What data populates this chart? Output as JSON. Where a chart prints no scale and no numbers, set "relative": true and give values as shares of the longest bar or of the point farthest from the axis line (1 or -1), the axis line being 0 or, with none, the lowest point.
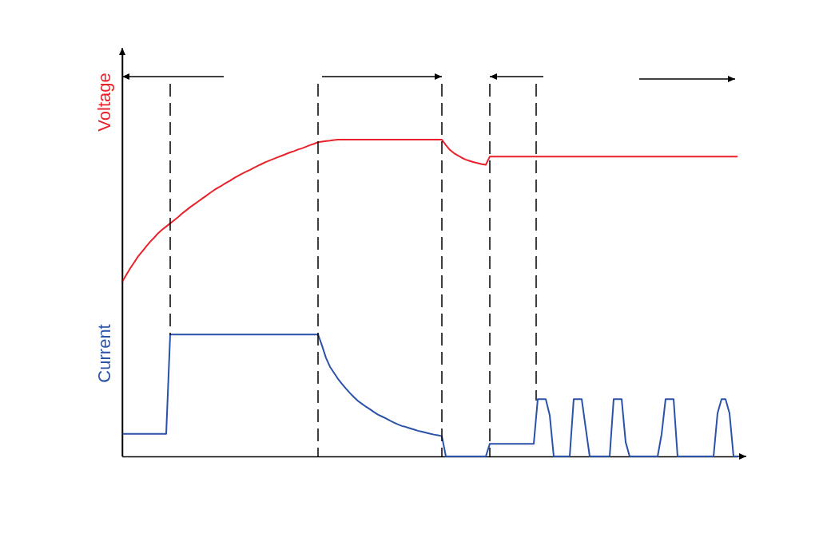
{
  "chart_data": {
    "type": "line",
    "relative": true,
    "line_style": "solid",
    "categories": [
      null,
      null,
      null,
      null,
      null,
      null,
      null,
      null,
      null,
      null,
      null,
      null,
      null,
      null,
      null,
      null,
      null,
      null,
      null,
      null,
      null,
      null,
      null,
      null,
      null,
      null,
      null,
      null,
      null,
      null,
      null,
      null,
      null,
      null,
      null,
      null,
      null,
      null,
      null,
      null,
      null,
      null,
      null,
      null,
      null,
      null,
      null,
      null,
      null,
      null,
      null,
      null,
      null,
      null,
      null,
      null,
      null,
      null,
      null,
      null,
      null,
      null,
      null,
      null,
      null,
      null,
      null,
      null,
      null,
      null,
      null,
      null,
      null,
      null,
      null,
      null,
      null,
      null,
      null,
      null,
      null,
      null,
      null,
      null,
      null,
      null,
      null,
      null,
      null,
      null,
      null,
      null,
      null,
      null,
      null,
      null,
      null,
      null,
      null,
      null,
      null,
      null,
      null,
      null,
      null,
      null,
      null,
      null,
      null,
      null,
      null,
      null,
      null,
      null,
      null,
      null,
      null,
      null,
      null,
      null,
      null,
      null,
      null,
      null,
      null,
      null,
      null,
      null,
      null,
      null,
      null,
      null,
      null,
      null,
      null,
      null,
      null,
      null,
      null,
      null,
      null,
      null,
      null,
      null,
      null,
      null,
      null,
      null,
      null,
      null,
      null,
      null,
      null,
      null,
      null
    ],
    "series": [
      {
        "name": "Voltage",
        "color": "#e8212a",
        "values": [
          0.552,
          0.573,
          0.594,
          0.613,
          0.632,
          0.647,
          0.663,
          0.678,
          0.691,
          0.705,
          0.716,
          0.726,
          0.736,
          0.746,
          0.756,
          0.767,
          0.777,
          0.787,
          0.796,
          0.805,
          0.814,
          0.823,
          0.832,
          0.841,
          0.849,
          0.856,
          0.864,
          0.871,
          0.879,
          0.886,
          0.893,
          0.899,
          0.905,
          0.912,
          0.918,
          0.924,
          0.93,
          0.935,
          0.94,
          0.945,
          0.95,
          0.955,
          0.96,
          0.964,
          0.969,
          0.973,
          0.978,
          0.983,
          0.987,
          0.992,
          0.994,
          0.996,
          0.997,
          0.999,
          1,
          1,
          1,
          1,
          1,
          1,
          1,
          1,
          1,
          1,
          1,
          1,
          1,
          1,
          1,
          1,
          1,
          1,
          1,
          1,
          1,
          1,
          1,
          1,
          1,
          1,
          1,
          0.983,
          0.968,
          0.958,
          0.95,
          0.943,
          0.937,
          0.933,
          0.929,
          0.926,
          0.923,
          0.921,
          0.947,
          0.947,
          0.947,
          0.947,
          0.947,
          0.947,
          0.947,
          0.947,
          0.947,
          0.947,
          0.947,
          0.947,
          0.947,
          0.947,
          0.947,
          0.947,
          0.947,
          0.947,
          0.947,
          0.947,
          0.947,
          0.947,
          0.947,
          0.947,
          0.947,
          0.947,
          0.947,
          0.947,
          0.947,
          0.947,
          0.947,
          0.947,
          0.947,
          0.947,
          0.947,
          0.947,
          0.947,
          0.947,
          0.947,
          0.947,
          0.947,
          0.947,
          0.947,
          0.947,
          0.947,
          0.947,
          0.947,
          0.947,
          0.947,
          0.947,
          0.947,
          0.947,
          0.947,
          0.947,
          0.947,
          0.947,
          0.947,
          0.947,
          0.947,
          0.947,
          0.947,
          0.947,
          0.947
        ]
      },
      {
        "name": "Current",
        "color": "#2a52a8",
        "values": [
          0.071,
          0.071,
          0.071,
          0.071,
          0.071,
          0.071,
          0.071,
          0.071,
          0.071,
          0.071,
          0.071,
          0.071,
          0.385,
          0.385,
          0.385,
          0.385,
          0.385,
          0.385,
          0.385,
          0.385,
          0.385,
          0.385,
          0.385,
          0.385,
          0.385,
          0.385,
          0.385,
          0.385,
          0.385,
          0.385,
          0.385,
          0.385,
          0.385,
          0.385,
          0.385,
          0.385,
          0.385,
          0.385,
          0.385,
          0.385,
          0.385,
          0.385,
          0.385,
          0.385,
          0.385,
          0.385,
          0.385,
          0.385,
          0.385,
          0.385,
          0.35,
          0.311,
          0.283,
          0.264,
          0.245,
          0.229,
          0.214,
          0.2,
          0.187,
          0.175,
          0.166,
          0.157,
          0.149,
          0.14,
          0.132,
          0.126,
          0.12,
          0.113,
          0.107,
          0.101,
          0.096,
          0.093,
          0.089,
          0.085,
          0.081,
          0.078,
          0.075,
          0.072,
          0.069,
          0.067,
          0.064,
          0,
          0,
          0,
          0,
          0,
          0,
          0,
          0,
          0,
          0,
          0,
          0.04,
          0.04,
          0.04,
          0.04,
          0.04,
          0.04,
          0.04,
          0.04,
          0.04,
          0.04,
          0.04,
          0.04,
          0.181,
          0.181,
          0.181,
          0.13,
          0,
          0,
          0,
          0,
          0,
          0.181,
          0.181,
          0.181,
          0.09,
          0,
          0,
          0,
          0,
          0,
          0,
          0.181,
          0.181,
          0.181,
          0.045,
          0,
          0,
          0,
          0,
          0,
          0,
          0,
          0,
          0.07,
          0.181,
          0.181,
          0.181,
          0,
          0,
          0,
          0,
          0,
          0,
          0,
          0,
          0,
          0,
          0.136,
          0.181,
          0.181,
          0.136,
          0,
          0
        ]
      }
    ]
  }
}
